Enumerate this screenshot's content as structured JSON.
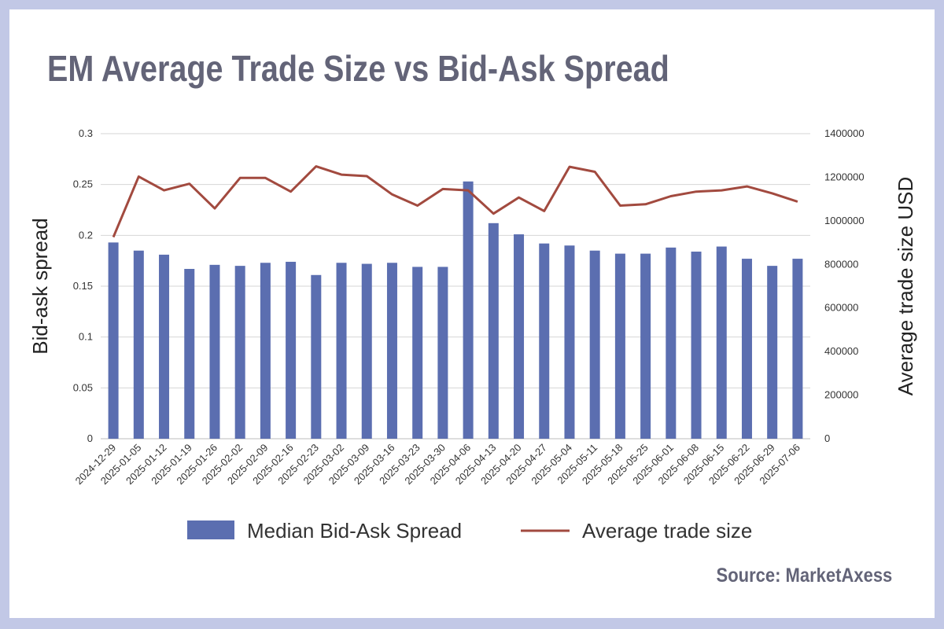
{
  "chart_data": {
    "type": "bar",
    "title": "EM Average Trade Size vs Bid-Ask Spread",
    "source": "Source: MarketAxess",
    "categories": [
      "2024-12-29",
      "2025-01-05",
      "2025-01-12",
      "2025-01-19",
      "2025-01-26",
      "2025-02-02",
      "2025-02-09",
      "2025-02-16",
      "2025-02-23",
      "2025-03-02",
      "2025-03-09",
      "2025-03-16",
      "2025-03-23",
      "2025-03-30",
      "2025-04-06",
      "2025-04-13",
      "2025-04-20",
      "2025-04-27",
      "2025-05-04",
      "2025-05-11",
      "2025-05-18",
      "2025-05-25",
      "2025-06-01",
      "2025-06-08",
      "2025-06-15",
      "2025-06-22",
      "2025-06-29",
      "2025-07-06"
    ],
    "series": [
      {
        "name": "Median Bid-Ask Spread",
        "type": "bar",
        "axis": "left",
        "color": "#5b6eb0",
        "values": [
          0.193,
          0.185,
          0.181,
          0.167,
          0.171,
          0.17,
          0.173,
          0.174,
          0.161,
          0.173,
          0.172,
          0.173,
          0.169,
          0.169,
          0.253,
          0.212,
          0.201,
          0.192,
          0.19,
          0.185,
          0.182,
          0.182,
          0.188,
          0.184,
          0.189,
          0.177,
          0.17,
          0.177
        ]
      },
      {
        "name": "Average trade size",
        "type": "line",
        "axis": "right",
        "color": "#a24a3f",
        "values": [
          925000,
          1203000,
          1140000,
          1170000,
          1057000,
          1197000,
          1197000,
          1134000,
          1250000,
          1212000,
          1205000,
          1121000,
          1070000,
          1146000,
          1140000,
          1033000,
          1107000,
          1045000,
          1248000,
          1225000,
          1070000,
          1076000,
          1113000,
          1134000,
          1140000,
          1158000,
          1126000,
          1088000
        ]
      }
    ],
    "y_left": {
      "label": "Bid-ask spread",
      "range": [
        0,
        0.3
      ],
      "ticks": [
        "0",
        "0.05",
        "0.1",
        "0.15",
        "0.2",
        "0.25",
        "0.3"
      ]
    },
    "y_right": {
      "label": "Average trade size USD",
      "range": [
        0,
        1400000
      ],
      "ticks": [
        "0",
        "200000",
        "400000",
        "600000",
        "800000",
        "1000000",
        "1200000",
        "1400000"
      ]
    },
    "grid": true,
    "legend_position": "bottom"
  }
}
